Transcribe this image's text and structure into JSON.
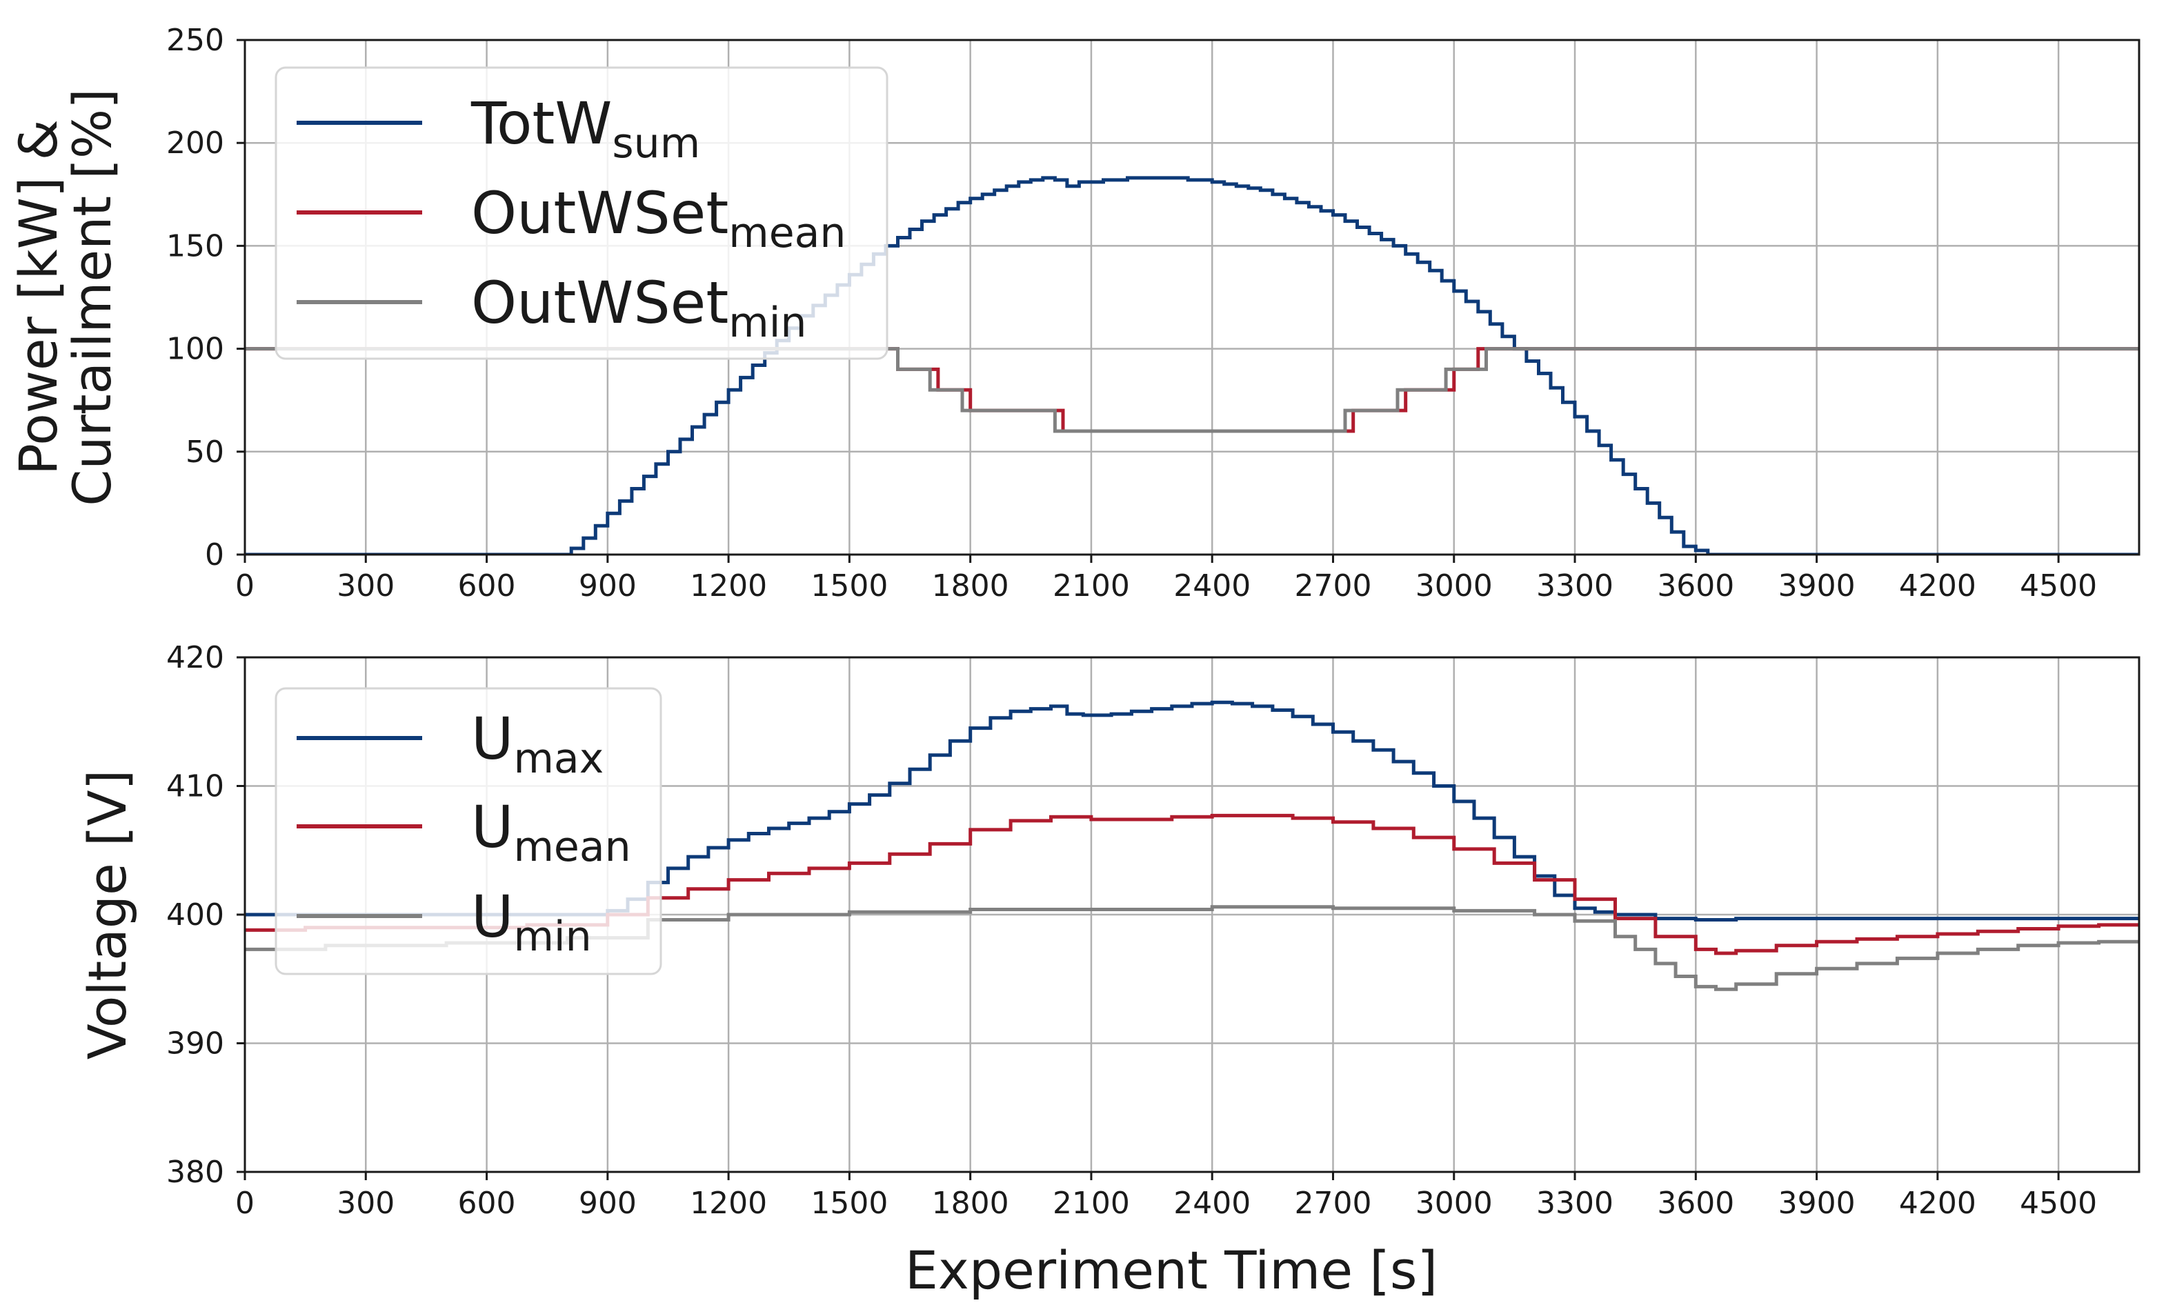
{
  "chart_data": [
    {
      "type": "line",
      "step": true,
      "title": "",
      "xlabel": "",
      "ylabel": "Power [kW] &\nCurtailment [%]",
      "ylabel_lines": [
        "Power [kW] &",
        "Curtailment [%]"
      ],
      "xlim": [
        0,
        4700
      ],
      "ylim": [
        0,
        250
      ],
      "xticks": [
        0,
        300,
        600,
        900,
        1200,
        1500,
        1800,
        2100,
        2400,
        2700,
        3000,
        3300,
        3600,
        3900,
        4200,
        4500
      ],
      "yticks": [
        0,
        50,
        100,
        150,
        200,
        250
      ],
      "grid": true,
      "legend_position": "top-left",
      "series": [
        {
          "name": "TotW",
          "name_sub": "sum",
          "color": "#0d3a78",
          "x": [
            0,
            795,
            810,
            840,
            870,
            900,
            930,
            960,
            990,
            1020,
            1050,
            1080,
            1110,
            1140,
            1170,
            1200,
            1230,
            1260,
            1290,
            1320,
            1350,
            1380,
            1410,
            1440,
            1470,
            1500,
            1530,
            1560,
            1590,
            1620,
            1650,
            1680,
            1710,
            1740,
            1770,
            1800,
            1830,
            1860,
            1890,
            1920,
            1950,
            1980,
            2010,
            2040,
            2070,
            2100,
            2130,
            2160,
            2190,
            2220,
            2250,
            2280,
            2310,
            2340,
            2370,
            2400,
            2430,
            2460,
            2490,
            2520,
            2550,
            2580,
            2610,
            2640,
            2670,
            2700,
            2730,
            2760,
            2790,
            2820,
            2850,
            2880,
            2910,
            2940,
            2970,
            3000,
            3030,
            3060,
            3090,
            3120,
            3150,
            3180,
            3210,
            3240,
            3270,
            3300,
            3330,
            3360,
            3390,
            3420,
            3450,
            3480,
            3510,
            3540,
            3570,
            3600,
            3630,
            3650,
            4700
          ],
          "y": [
            0,
            0,
            3,
            8,
            14,
            20,
            26,
            32,
            38,
            44,
            50,
            56,
            62,
            68,
            74,
            80,
            86,
            92,
            98,
            104,
            110,
            116,
            121,
            126,
            131,
            136,
            141,
            146,
            150,
            154,
            158,
            162,
            165,
            168,
            171,
            173,
            175,
            177,
            179,
            181,
            182,
            183,
            182,
            179,
            181,
            181,
            182,
            182,
            183,
            183,
            183,
            183,
            183,
            182,
            182,
            181,
            180,
            179,
            178,
            177,
            175,
            173,
            171,
            169,
            167,
            165,
            162,
            159,
            156,
            153,
            150,
            146,
            142,
            138,
            133,
            128,
            123,
            118,
            112,
            106,
            100,
            94,
            88,
            81,
            74,
            67,
            60,
            53,
            46,
            39,
            32,
            25,
            18,
            11,
            4,
            2,
            0,
            0,
            0
          ]
        },
        {
          "name": "OutWSet",
          "name_sub": "mean",
          "color": "#b01c2e",
          "x": [
            0,
            1620,
            1720,
            1800,
            2030,
            2750,
            2880,
            3000,
            3060,
            4700
          ],
          "y": [
            100,
            90,
            80,
            70,
            60,
            70,
            80,
            90,
            100,
            100
          ]
        },
        {
          "name": "OutWSet",
          "name_sub": "min",
          "color": "#808080",
          "x": [
            0,
            1620,
            1700,
            1780,
            2010,
            2730,
            2860,
            2980,
            3080,
            4700
          ],
          "y": [
            100,
            90,
            80,
            70,
            60,
            70,
            80,
            90,
            100,
            100
          ]
        }
      ]
    },
    {
      "type": "line",
      "step": true,
      "title": "",
      "xlabel": "Experiment Time [s]",
      "ylabel": "Voltage [V]",
      "xlim": [
        0,
        4700
      ],
      "ylim": [
        380,
        420
      ],
      "xticks": [
        0,
        300,
        600,
        900,
        1200,
        1500,
        1800,
        2100,
        2400,
        2700,
        3000,
        3300,
        3600,
        3900,
        4200,
        4500
      ],
      "yticks": [
        380,
        390,
        400,
        410,
        420
      ],
      "grid": true,
      "legend_position": "top-left",
      "series": [
        {
          "name": "U",
          "name_sub": "max",
          "color": "#0d3a78",
          "x": [
            0,
            900,
            950,
            1000,
            1050,
            1100,
            1150,
            1200,
            1250,
            1300,
            1350,
            1400,
            1450,
            1500,
            1550,
            1600,
            1650,
            1700,
            1750,
            1800,
            1850,
            1900,
            1950,
            2000,
            2040,
            2080,
            2150,
            2200,
            2250,
            2300,
            2350,
            2400,
            2450,
            2500,
            2550,
            2600,
            2650,
            2700,
            2750,
            2800,
            2850,
            2900,
            2950,
            3000,
            3050,
            3100,
            3150,
            3200,
            3250,
            3300,
            3350,
            3400,
            3500,
            3600,
            3700,
            4700
          ],
          "y": [
            400,
            400.3,
            401.2,
            402.5,
            403.6,
            404.5,
            405.2,
            405.8,
            406.3,
            406.7,
            407.1,
            407.5,
            408,
            408.6,
            409.3,
            410.2,
            411.3,
            412.4,
            413.5,
            414.5,
            415.3,
            415.8,
            416,
            416.2,
            415.6,
            415.5,
            415.6,
            415.8,
            416,
            416.2,
            416.4,
            416.5,
            416.4,
            416.2,
            415.9,
            415.4,
            414.8,
            414.2,
            413.5,
            412.8,
            411.9,
            411,
            410,
            408.8,
            407.5,
            406,
            404.5,
            403,
            401.5,
            400.5,
            400.2,
            400,
            399.7,
            399.6,
            399.7,
            399.8
          ]
        },
        {
          "name": "U",
          "name_sub": "mean",
          "color": "#b01c2e",
          "x": [
            0,
            150,
            700,
            900,
            1000,
            1100,
            1200,
            1300,
            1400,
            1500,
            1600,
            1700,
            1800,
            1900,
            2000,
            2100,
            2200,
            2300,
            2400,
            2500,
            2600,
            2700,
            2800,
            2900,
            3000,
            3100,
            3200,
            3300,
            3400,
            3500,
            3600,
            3650,
            3700,
            3800,
            3900,
            4000,
            4100,
            4200,
            4300,
            4400,
            4500,
            4600,
            4700
          ],
          "y": [
            398.8,
            399,
            399.2,
            400,
            401.3,
            402,
            402.7,
            403.2,
            403.6,
            404,
            404.7,
            405.5,
            406.6,
            407.3,
            407.6,
            407.4,
            407.4,
            407.6,
            407.7,
            407.7,
            407.5,
            407.2,
            406.7,
            406,
            405.1,
            404,
            402.7,
            401.2,
            399.7,
            398.3,
            397.3,
            397,
            397.2,
            397.6,
            397.9,
            398.1,
            398.3,
            398.5,
            398.7,
            398.9,
            399.1,
            399.2,
            399.3
          ]
        },
        {
          "name": "U",
          "name_sub": "min",
          "color": "#808080",
          "x": [
            0,
            200,
            500,
            800,
            1000,
            1200,
            1500,
            1800,
            2100,
            2400,
            2700,
            3000,
            3200,
            3300,
            3400,
            3450,
            3500,
            3550,
            3600,
            3650,
            3700,
            3800,
            3900,
            4000,
            4100,
            4200,
            4300,
            4400,
            4500,
            4600,
            4700
          ],
          "y": [
            397.3,
            397.6,
            397.8,
            398.2,
            399.6,
            400,
            400.2,
            400.4,
            400.4,
            400.6,
            400.5,
            400.3,
            400,
            399.5,
            398.3,
            397.3,
            396.2,
            395.2,
            394.4,
            394.2,
            394.6,
            395.4,
            395.8,
            396.2,
            396.6,
            397,
            397.3,
            397.6,
            397.8,
            397.9,
            398
          ]
        }
      ]
    }
  ]
}
